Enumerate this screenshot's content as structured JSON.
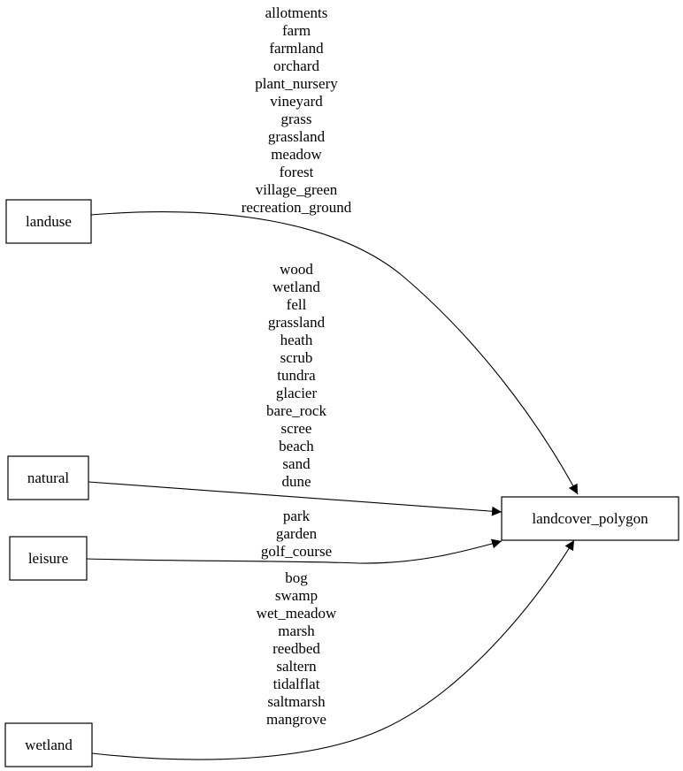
{
  "nodes": {
    "landuse": "landuse",
    "natural": "natural",
    "leisure": "leisure",
    "wetland": "wetland",
    "target": "landcover_polygon"
  },
  "edges": {
    "landuse": [
      "allotments",
      "farm",
      "farmland",
      "orchard",
      "plant_nursery",
      "vineyard",
      "grass",
      "grassland",
      "meadow",
      "forest",
      "village_green",
      "recreation_ground"
    ],
    "natural": [
      "wood",
      "wetland",
      "fell",
      "grassland",
      "heath",
      "scrub",
      "tundra",
      "glacier",
      "bare_rock",
      "scree",
      "beach",
      "sand",
      "dune"
    ],
    "leisure": [
      "park",
      "garden",
      "golf_course"
    ],
    "wetland": [
      "bog",
      "swamp",
      "wet_meadow",
      "marsh",
      "reedbed",
      "saltern",
      "tidalflat",
      "saltmarsh",
      "mangrove"
    ]
  }
}
